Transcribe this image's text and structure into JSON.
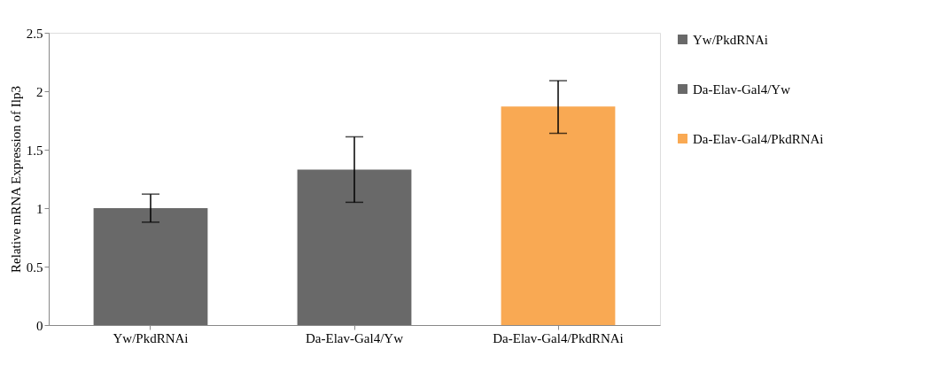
{
  "chart_data": {
    "type": "bar",
    "ylabel": "Relative mRNA Expression of Ilp3",
    "categories": [
      "Yw/PkdRNAi",
      "Da-Elav-Gal4/Yw",
      "Da-Elav-Gal4/PkdRNAi"
    ],
    "series": [
      {
        "name": "Yw/PkdRNAi",
        "color": "#696969",
        "values": [
          1.0,
          null,
          null
        ],
        "errors": [
          [
            0.88,
            1.12
          ],
          null,
          null
        ]
      },
      {
        "name": "Da-Elav-Gal4/Yw",
        "color": "#696969",
        "values": [
          null,
          1.33,
          null
        ],
        "errors": [
          null,
          [
            1.05,
            1.61
          ],
          null
        ]
      },
      {
        "name": "Da-Elav-Gal4/PkdRNAi",
        "color": "#f9a953",
        "values": [
          null,
          null,
          1.87
        ],
        "errors": [
          null,
          null,
          [
            1.64,
            2.09
          ]
        ]
      }
    ],
    "ylim": [
      0,
      2.5
    ],
    "yticks": [
      0,
      0.5,
      1,
      1.5,
      2,
      2.5
    ],
    "grid": false,
    "legend": "right"
  }
}
